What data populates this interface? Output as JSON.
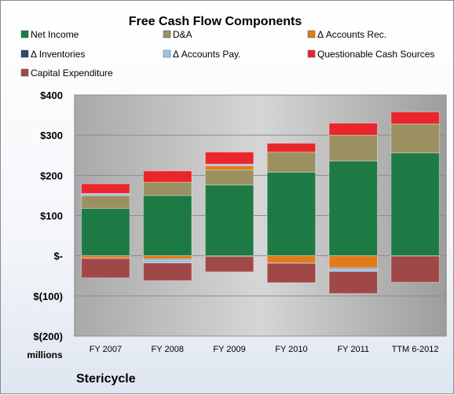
{
  "chart_data": {
    "type": "bar",
    "stacked": true,
    "title": "Free Cash Flow Components",
    "unit_label": "millions",
    "company": "Stericycle",
    "categories": [
      "FY 2007",
      "FY 2008",
      "FY 2009",
      "FY 2010",
      "FY 2011",
      "TTM 6-2012"
    ],
    "ylim": [
      -200,
      400
    ],
    "yticks": [
      400,
      300,
      200,
      100,
      0,
      -100,
      -200
    ],
    "ytick_labels": [
      "$400",
      "$300",
      "$200",
      "$100",
      "$-",
      "$(100)",
      "$(200)"
    ],
    "grid": true,
    "legend_position": "top",
    "series": [
      {
        "name": "Net Income",
        "color": "#1e7a45",
        "values": [
          118,
          150,
          176,
          208,
          236,
          256
        ]
      },
      {
        "name": "D&A",
        "color": "#9b9060",
        "values": [
          32,
          33,
          38,
          50,
          64,
          72
        ]
      },
      {
        "name": "Δ Accounts Rec.",
        "color": "#e07b1a",
        "values": [
          -6,
          -8,
          10,
          -18,
          -30,
          0
        ]
      },
      {
        "name": "Δ Inventories",
        "color": "#2f4a6a",
        "values": [
          -1,
          -2,
          -2,
          -1,
          -2,
          -1
        ]
      },
      {
        "name": "Δ Accounts Pay.",
        "color": "#9ec3e8",
        "values": [
          5,
          -8,
          4,
          0,
          -7,
          0
        ]
      },
      {
        "name": "Questionable Cash Sources",
        "color": "#e8262b",
        "values": [
          24,
          28,
          30,
          22,
          30,
          30
        ]
      },
      {
        "name": "Capital Expenditure",
        "color": "#a04848",
        "values": [
          -48,
          -44,
          -38,
          -48,
          -55,
          -65
        ]
      }
    ]
  }
}
